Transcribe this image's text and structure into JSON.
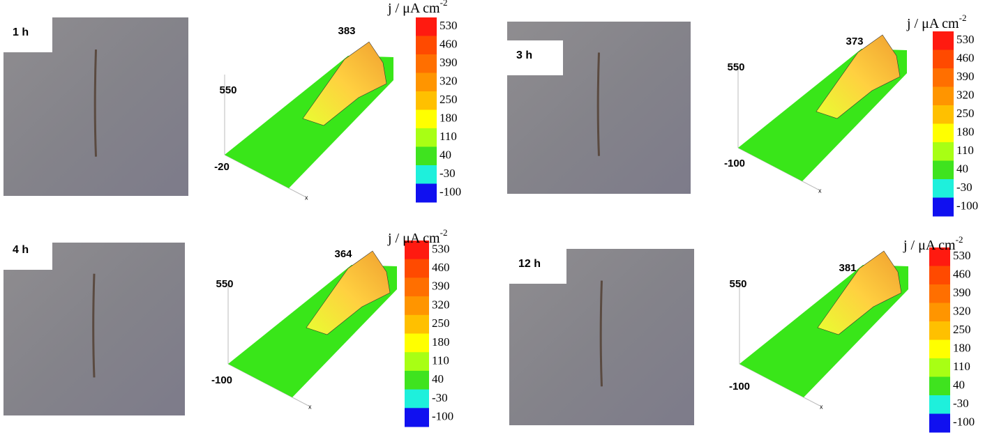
{
  "panels": [
    {
      "label": "1 h",
      "peak": 383,
      "axis_top": 550,
      "axis_bottom": -20,
      "axis_x": "x"
    },
    {
      "label": "3 h",
      "peak": 373,
      "axis_top": 550,
      "axis_bottom": -100,
      "axis_x": "x"
    },
    {
      "label": "4 h",
      "peak": 364,
      "axis_top": 550,
      "axis_bottom": -100,
      "axis_x": "x"
    },
    {
      "label": "12 h",
      "peak": 381,
      "axis_top": 550,
      "axis_bottom": -100,
      "axis_x": "x"
    }
  ],
  "colorbar": {
    "title": "j / μA cm",
    "title_exponent": "-2",
    "ticks": [
      530,
      460,
      390,
      320,
      250,
      180,
      110,
      40,
      -30,
      -100
    ],
    "colors": [
      "#ff1a10",
      "#ff4a00",
      "#ff6f00",
      "#ff9500",
      "#ffc000",
      "#ffff00",
      "#a8ff14",
      "#3fe31f",
      "#1ef0dc",
      "#1010f0"
    ]
  }
}
